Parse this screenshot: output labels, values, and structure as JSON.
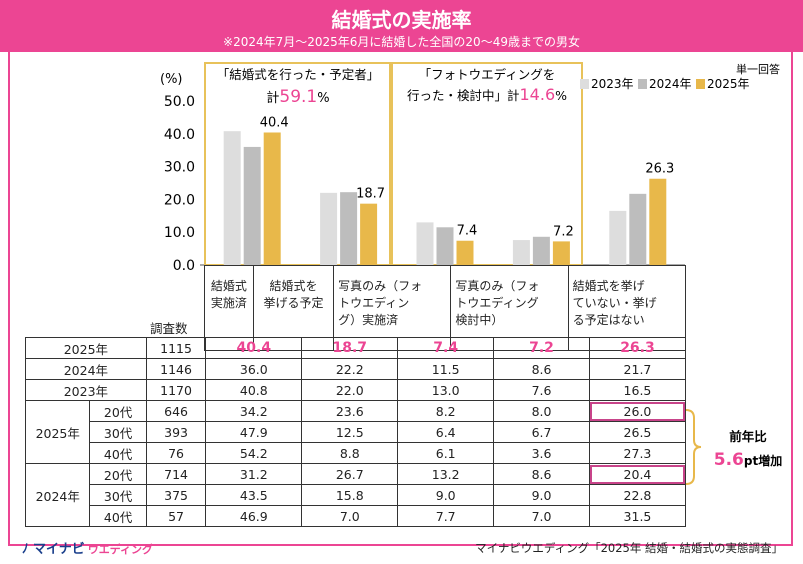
{
  "header": {
    "title": "結婚式の実施率",
    "subtitle": "※2024年7月～2025年6月に結婚した全国の20～49歳までの男女"
  },
  "legend": {
    "note": "単一回答",
    "items": [
      {
        "label": "2023年",
        "color": "#dddddd"
      },
      {
        "label": "2024年",
        "color": "#bdbdbd"
      },
      {
        "label": "2025年",
        "color": "#e8b84a"
      }
    ]
  },
  "groups": {
    "group1_line1": "「結婚式を行った・予定者」",
    "group1_prefix": "計",
    "group1_value": "59.1",
    "group1_suffix": "%",
    "group2_line1": "「フォトウエディングを",
    "group2_line2": "行った・検討中」",
    "group2_prefix": "計",
    "group2_value": "14.6",
    "group2_suffix": "%"
  },
  "chart_data": {
    "type": "bar",
    "ylabel": "(%)",
    "ylim": [
      0,
      50
    ],
    "yticks": [
      "50.0",
      "40.0",
      "30.0",
      "20.0",
      "10.0",
      "0.0"
    ],
    "categories": [
      "結婚式\n実施済",
      "結婚式を\n挙げる予定",
      "写真のみ（フォ\nトウエディン\nグ）実施済",
      "写真のみ（フォ\nトウエディング\n検討中）",
      "結婚式を挙げ\nていない・挙げ\nる予定はない"
    ],
    "series": [
      {
        "name": "2023年",
        "values": [
          40.8,
          22.0,
          13.0,
          7.6,
          16.5
        ],
        "color": "#dddddd"
      },
      {
        "name": "2024年",
        "values": [
          36.0,
          22.2,
          11.5,
          8.6,
          21.7
        ],
        "color": "#bdbdbd"
      },
      {
        "name": "2025年",
        "values": [
          40.4,
          18.7,
          7.4,
          7.2,
          26.3
        ],
        "color": "#e8b84a"
      }
    ],
    "data_labels": [
      "40.4",
      "18.7",
      "7.4",
      "7.2",
      "26.3"
    ]
  },
  "table": {
    "count_header": "調査数",
    "rows": [
      {
        "year": "2025年",
        "age": "",
        "n": "1115",
        "values": [
          "40.4",
          "18.7",
          "7.4",
          "7.2",
          "26.3"
        ]
      },
      {
        "year": "2024年",
        "age": "",
        "n": "1146",
        "values": [
          "36.0",
          "22.2",
          "11.5",
          "8.6",
          "21.7"
        ]
      },
      {
        "year": "2023年",
        "age": "",
        "n": "1170",
        "values": [
          "40.8",
          "22.0",
          "13.0",
          "7.6",
          "16.5"
        ]
      },
      {
        "year": "2025年",
        "age": "20代",
        "n": "646",
        "values": [
          "34.2",
          "23.6",
          "8.2",
          "8.0",
          "26.0"
        ]
      },
      {
        "year": "",
        "age": "30代",
        "n": "393",
        "values": [
          "47.9",
          "12.5",
          "6.4",
          "6.7",
          "26.5"
        ]
      },
      {
        "year": "",
        "age": "40代",
        "n": "76",
        "values": [
          "54.2",
          "8.8",
          "6.1",
          "3.6",
          "27.3"
        ]
      },
      {
        "year": "2024年",
        "age": "20代",
        "n": "714",
        "values": [
          "31.2",
          "26.7",
          "13.2",
          "8.6",
          "20.4"
        ]
      },
      {
        "year": "",
        "age": "30代",
        "n": "375",
        "values": [
          "43.5",
          "15.8",
          "9.0",
          "9.0",
          "22.8"
        ]
      },
      {
        "year": "",
        "age": "40代",
        "n": "57",
        "values": [
          "46.9",
          "7.0",
          "7.7",
          "7.0",
          "31.5"
        ]
      }
    ]
  },
  "callout": {
    "line1": "前年比",
    "value": "5.6",
    "unit": "pt増加"
  },
  "footer": {
    "logo_main": "マイナビ",
    "logo_sub": "ウエディング",
    "source": "マイナビウエディング「2025年 結婚・結婚式の実態調査」"
  }
}
